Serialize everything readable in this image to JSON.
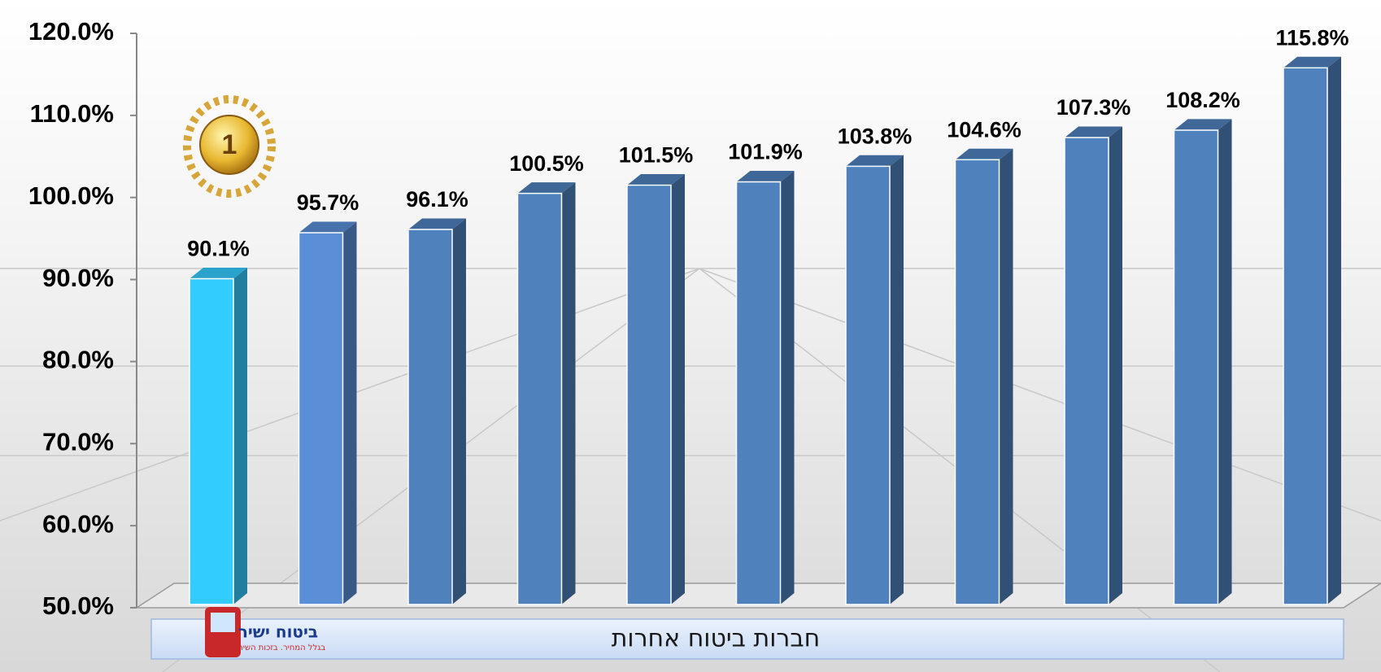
{
  "chart_data": {
    "type": "bar",
    "categories": [
      null,
      null,
      null,
      null,
      null,
      null,
      null,
      null,
      null,
      null,
      null
    ],
    "values": [
      90.1,
      95.7,
      96.1,
      100.5,
      101.5,
      101.9,
      103.8,
      104.6,
      107.3,
      108.2,
      115.8
    ],
    "value_labels": [
      "90.1%",
      "95.7%",
      "96.1%",
      "100.5%",
      "101.5%",
      "101.9%",
      "103.8%",
      "104.6%",
      "107.3%",
      "108.2%",
      "115.8%"
    ],
    "colors": [
      "#33ccff",
      "#5a8ed6",
      "#4f81bd",
      "#4f81bd",
      "#4f81bd",
      "#4f81bd",
      "#4f81bd",
      "#4f81bd",
      "#4f81bd",
      "#4f81bd",
      "#4f81bd"
    ],
    "ylim": [
      50,
      120
    ],
    "yticks": [
      {
        "value": 50,
        "label": "50.0%"
      },
      {
        "value": 60,
        "label": "60.0%"
      },
      {
        "value": 70,
        "label": "70.0%"
      },
      {
        "value": 80,
        "label": "80.0%"
      },
      {
        "value": 90,
        "label": "90.0%"
      },
      {
        "value": 100,
        "label": "100.0%"
      },
      {
        "value": 110,
        "label": "110.0%"
      },
      {
        "value": 120,
        "label": "120.0%"
      }
    ],
    "category_strip_label": "חברות ביטוח אחרות",
    "logo_name": "ביטוח ישיר",
    "logo_tagline": "בגלל המחיר. בזכות השירות",
    "badge": "1"
  }
}
